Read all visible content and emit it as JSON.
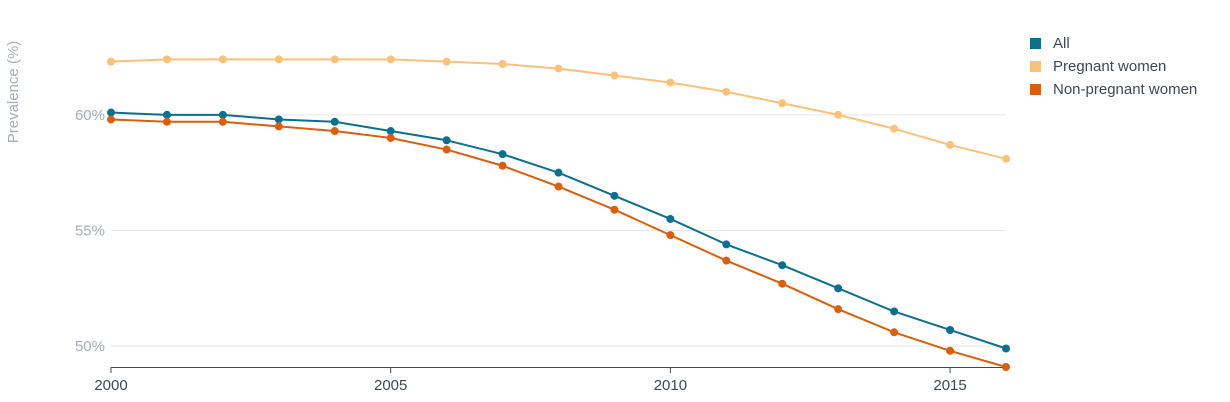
{
  "chart_data": {
    "type": "line",
    "title": "",
    "xlabel": "",
    "ylabel": "Prevalence (%)",
    "x": [
      2000,
      2001,
      2002,
      2003,
      2004,
      2005,
      2006,
      2007,
      2008,
      2009,
      2010,
      2011,
      2012,
      2013,
      2014,
      2015,
      2016
    ],
    "xticks": [
      "2000",
      "2005",
      "2010",
      "2015"
    ],
    "yticks": [
      "50%",
      "55%",
      "60%"
    ],
    "xlim": [
      2000,
      2016
    ],
    "ylim": [
      49.1,
      64.1
    ],
    "grid": true,
    "legend_position": "top-right",
    "series": [
      {
        "name": "All",
        "color": "#0d6f8e",
        "values": [
          60.1,
          60.0,
          60.0,
          59.8,
          59.7,
          59.3,
          58.9,
          58.3,
          57.5,
          56.5,
          55.5,
          54.4,
          53.5,
          52.5,
          51.5,
          50.7,
          49.9
        ]
      },
      {
        "name": "Pregnant women",
        "color": "#f8c27a",
        "values": [
          62.3,
          62.4,
          62.4,
          62.4,
          62.4,
          62.4,
          62.3,
          62.2,
          62.0,
          61.7,
          61.4,
          61.0,
          60.5,
          60.0,
          59.4,
          58.7,
          58.1
        ]
      },
      {
        "name": "Non-pregnant women",
        "color": "#d95f0e",
        "values": [
          59.8,
          59.7,
          59.7,
          59.5,
          59.3,
          59.0,
          58.5,
          57.8,
          56.9,
          55.9,
          54.8,
          53.7,
          52.7,
          51.6,
          50.6,
          49.8,
          49.1
        ]
      }
    ]
  }
}
